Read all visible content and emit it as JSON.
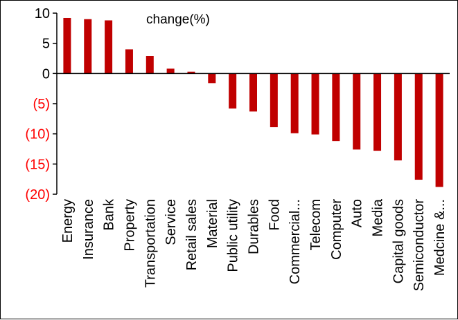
{
  "chart_data": {
    "type": "bar",
    "title": "change(%)",
    "xlabel": "",
    "ylabel": "",
    "categories": [
      "Energy",
      "Insurance",
      "Bank",
      "Property",
      "Transportation",
      "Service",
      "Retail sales",
      "Material",
      "Public utility",
      "Durables",
      "Food",
      "Commercial...",
      "Telecom",
      "Computer",
      "Auto",
      "Media",
      "Capital goods",
      "Semiconductor",
      "Medcine &..."
    ],
    "values": [
      9.2,
      9.0,
      8.8,
      4.0,
      2.9,
      0.8,
      0.3,
      -1.6,
      -5.8,
      -6.3,
      -8.9,
      -9.9,
      -10.1,
      -11.2,
      -12.6,
      -12.8,
      -14.4,
      -17.6,
      -18.8
    ],
    "ylim": [
      -20,
      10
    ],
    "yticks": [
      10,
      5,
      0,
      -5,
      -10,
      -15,
      -20
    ],
    "ytick_labels": [
      "10",
      "5",
      "0",
      "(5)",
      "(10)",
      "(15)",
      "(20)"
    ],
    "colors": {
      "bar": "#C00000",
      "positive_tick": "#000000",
      "negative_tick": "#FF0000",
      "axis": "#000000"
    },
    "grid": false,
    "legend": "none"
  }
}
